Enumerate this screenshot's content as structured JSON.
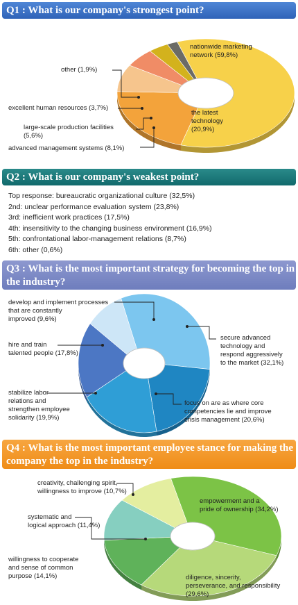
{
  "q1": {
    "title": "Q1 : What is our company's  strongest point?",
    "chart_data": {
      "type": "pie",
      "title": "Q1 : What is our company's  strongest point?",
      "slices": [
        {
          "label": "nationwide marketing network",
          "value": 59.8,
          "display": "nationwide marketing\nnetwork (59,8%)",
          "color": "#f7d14a"
        },
        {
          "label": "the latest technology",
          "value": 20.9,
          "display": "the latest\ntechnology\n(20,9%)",
          "color": "#f3a33b"
        },
        {
          "label": "advanced management systems",
          "value": 8.1,
          "display": "advanced management systems (8,1%)",
          "color": "#f6c58d"
        },
        {
          "label": "large-scale production facilities",
          "value": 5.6,
          "display": "large-scale production facilities\n(5,6%)",
          "color": "#f08c66"
        },
        {
          "label": "excellent human resources",
          "value": 3.7,
          "display": "excellent human resources (3,7%)",
          "color": "#d3b21d"
        },
        {
          "label": "other",
          "value": 1.9,
          "display": "other (1,9%)",
          "color": "#6b6b66"
        }
      ]
    }
  },
  "q2": {
    "title": "Q2 : What is our company's  weakest point?",
    "items": [
      "Top response: bureaucratic organizational culture (32,5%)",
      "2nd: unclear performance evaluation system (23,8%)",
      "3rd: inefficient work practices (17,5%)",
      "4th: insensitivity to the changing business environment (16,9%)",
      "5th: confrontational labor-management relations (8,7%)",
      "6th: other (0,6%)"
    ]
  },
  "q3": {
    "title": "Q3 : What is the most important strategy for becoming the top in the industry?",
    "chart_data": {
      "type": "pie",
      "title": "Q3 : What is the most important strategy for becoming the top in the industry?",
      "slices": [
        {
          "label": "secure advanced technology and respond aggressively to the market",
          "value": 32.1,
          "display": "secure advanced\ntechnology and\nrespond aggressively\nto the market (32,1%)",
          "color": "#7cc6ef"
        },
        {
          "label": "focus on are as where core competencies lie and improve crisis management",
          "value": 20.6,
          "display": "focus on are as where core\ncompetencies lie and improve\ncrisis management (20,6%)",
          "color": "#1f86c2"
        },
        {
          "label": "stabilize labor relations and strengthen employee solidarity",
          "value": 19.9,
          "display": "stabilize labor\nrelations and\nstrengthen employee\nsolidarity (19,9%)",
          "color": "#2f9ed6"
        },
        {
          "label": "hire and train talented people",
          "value": 17.8,
          "display": "hire and train\ntalented people (17,8%)",
          "color": "#4c77c4"
        },
        {
          "label": "develop and implement processes that are constantly improved",
          "value": 9.6,
          "display": "develop and implement processes\nthat are constantly\nimproved (9,6%)",
          "color": "#cde6f7"
        }
      ]
    }
  },
  "q4": {
    "title": "Q4 : What is the most important employee stance for making the company the top in the industry?",
    "chart_data": {
      "type": "pie",
      "title": "Q4 : What is the most important employee stance for making the company the top in the industry?",
      "slices": [
        {
          "label": "empowerment and a pride of ownership",
          "value": 34.2,
          "display": "empowerment and  a\npride of ownership (34,2%)",
          "color": "#7cc346"
        },
        {
          "label": "diligence, sincerity, perseverance, and responsibility",
          "value": 29.6,
          "display": "diligence, sincerity,\nperseverance, and responsibility (29,6%)",
          "color": "#b6d97a"
        },
        {
          "label": "willingness to cooperate and sense of common purpose",
          "value": 14.1,
          "display": "willingness to cooperate\nand sense of common\npurpose (14,1%)",
          "color": "#5fb25a"
        },
        {
          "label": "systematic and logical approach",
          "value": 11.4,
          "display": "systematic and\nlogical approach (11,4%)",
          "color": "#86cfc0"
        },
        {
          "label": "creativity, challenging spirit, willingness to improve",
          "value": 10.7,
          "display": "creativity, challenging spirit,\nwillingness to improve (10,7%)",
          "color": "#e4eea0"
        }
      ]
    }
  }
}
